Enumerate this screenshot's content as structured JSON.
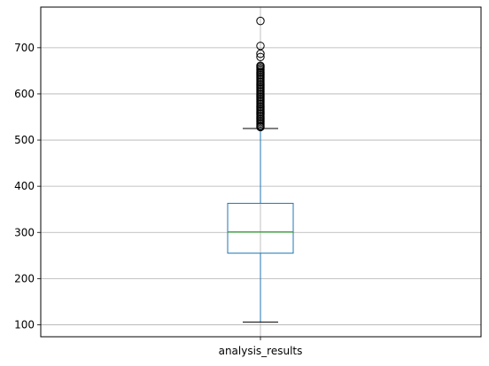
{
  "chart_data": {
    "type": "box",
    "title": "",
    "xlabel": "",
    "ylabel": "",
    "categories": [
      "analysis_results"
    ],
    "ylim": [
      74,
      788
    ],
    "yticks": [
      100,
      200,
      300,
      400,
      500,
      600,
      700
    ],
    "grid": true,
    "box": {
      "whisker_low": 106,
      "q1": 255,
      "median": 301,
      "q3": 363,
      "whisker_high": 525
    },
    "outliers": [
      528,
      530,
      533,
      536,
      539,
      542,
      545,
      548,
      551,
      554,
      557,
      560,
      563,
      566,
      569,
      572,
      575,
      578,
      581,
      584,
      587,
      590,
      593,
      596,
      599,
      602,
      605,
      608,
      611,
      614,
      617,
      620,
      623,
      626,
      629,
      632,
      635,
      638,
      641,
      644,
      647,
      650,
      653,
      656,
      659,
      661,
      680,
      687,
      704,
      758
    ],
    "colors": {
      "box": "#1f77b4",
      "whisker": "#1f77b4",
      "cap": "#000000",
      "median": "#2ca02c",
      "flier": "#000000",
      "grid": "#b0b0b0"
    }
  }
}
